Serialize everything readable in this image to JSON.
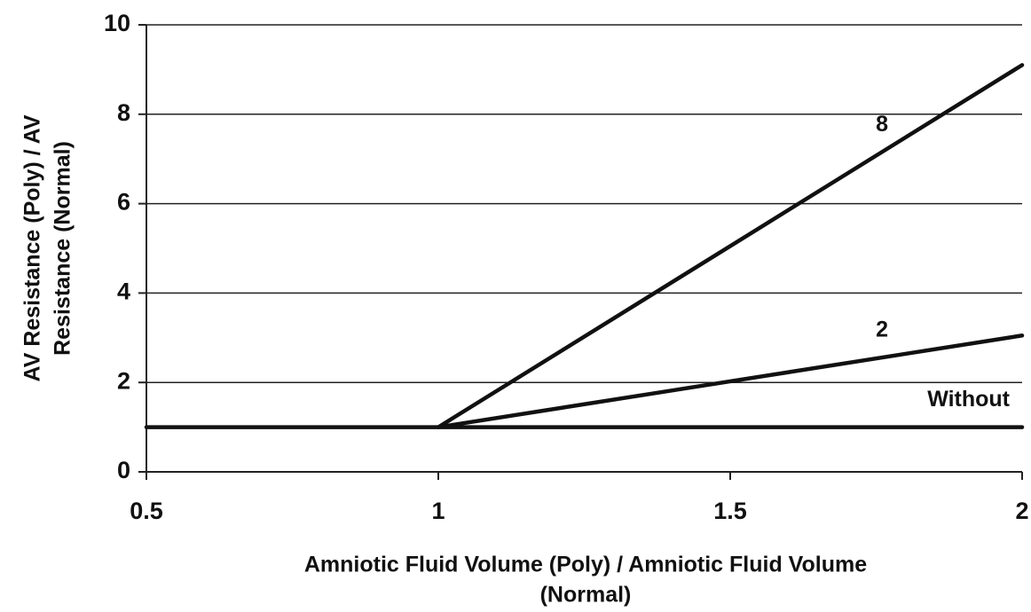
{
  "chart_data": {
    "type": "line",
    "x_label": [
      "Amniotic Fluid Volume (Poly) / Amniotic Fluid Volume",
      "(Normal)"
    ],
    "y_label": [
      "AV Resistance (Poly) / AV",
      "Resistance (Normal)"
    ],
    "series": [
      {
        "name": "8",
        "color": "#111111",
        "x": [
          1,
          2
        ],
        "values": [
          1,
          9.1
        ]
      },
      {
        "name": "2",
        "color": "#111111",
        "x": [
          1,
          2
        ],
        "values": [
          1,
          3.05
        ]
      },
      {
        "name": "Without",
        "color": "#111111",
        "x": [
          0.5,
          2
        ],
        "values": [
          1,
          1
        ]
      }
    ],
    "xlim": [
      0.5,
      2
    ],
    "xticks": [
      0.5,
      1,
      1.5,
      2
    ],
    "ylim": [
      0,
      10
    ],
    "yticks": [
      0,
      2,
      4,
      6,
      8,
      10
    ],
    "grid": true
  }
}
